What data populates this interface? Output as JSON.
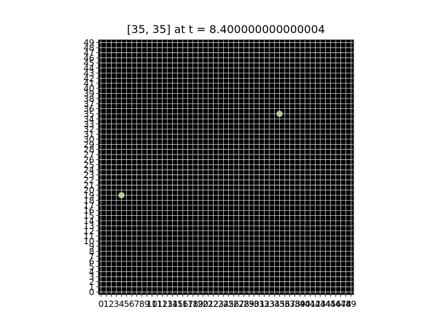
{
  "chart_data": {
    "type": "scatter",
    "title": "[35, 35] at t = 8.400000000000004",
    "xlim": [
      0,
      49
    ],
    "ylim": [
      0,
      49
    ],
    "xticks": [
      0,
      1,
      2,
      3,
      4,
      5,
      6,
      7,
      8,
      9,
      10,
      11,
      12,
      13,
      14,
      15,
      16,
      17,
      18,
      19,
      20,
      21,
      22,
      23,
      24,
      25,
      26,
      27,
      28,
      29,
      30,
      31,
      32,
      33,
      34,
      35,
      36,
      37,
      38,
      39,
      40,
      41,
      42,
      43,
      44,
      45,
      46,
      47,
      48,
      49
    ],
    "yticks": [
      0,
      1,
      2,
      3,
      4,
      5,
      6,
      7,
      8,
      9,
      10,
      11,
      12,
      13,
      14,
      15,
      16,
      17,
      18,
      19,
      20,
      21,
      22,
      23,
      24,
      25,
      26,
      27,
      28,
      29,
      30,
      31,
      32,
      33,
      34,
      35,
      36,
      37,
      38,
      39,
      40,
      41,
      42,
      43,
      44,
      45,
      46,
      47,
      48,
      49
    ],
    "grid": true,
    "background": "#000000",
    "grid_color": "#d9d9d9",
    "marker_color": "#c8dba8",
    "points": [
      {
        "x": 4,
        "y": 19
      },
      {
        "x": 35,
        "y": 35
      }
    ]
  }
}
